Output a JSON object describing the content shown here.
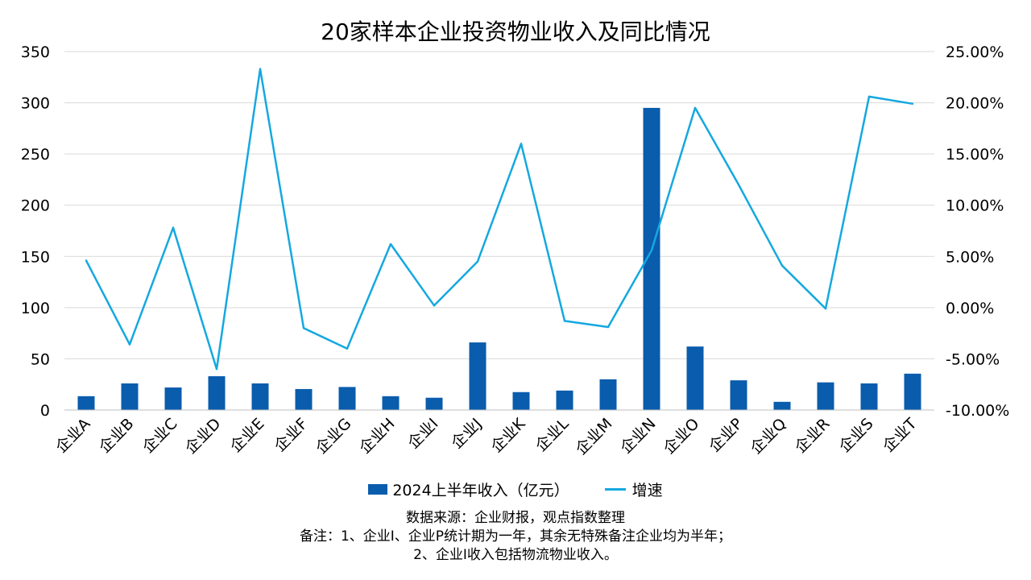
{
  "title": "20家样本企业投资物业收入及同比情况",
  "colors": {
    "bar": "#0a5cad",
    "line": "#15a8e0",
    "grid": "#d9d9d9"
  },
  "chart_data": {
    "type": "bar+line",
    "title": "20家样本企业投资物业收入及同比情况",
    "categories": [
      "企业A",
      "企业B",
      "企业C",
      "企业D",
      "企业E",
      "企业F",
      "企业G",
      "企业H",
      "企业I",
      "企业J",
      "企业K",
      "企业L",
      "企业M",
      "企业N",
      "企业O",
      "企业P",
      "企业Q",
      "企业R",
      "企业S",
      "企业T"
    ],
    "series": [
      {
        "name": "2024上半年收入（亿元）",
        "type": "bar",
        "axis": "left",
        "values": [
          13.5,
          26,
          22,
          33,
          26,
          20.5,
          22.5,
          13.5,
          12,
          66,
          17.5,
          19,
          30,
          295,
          62,
          29,
          8,
          27,
          26,
          35.5
        ]
      },
      {
        "name": "增速",
        "type": "line",
        "axis": "right",
        "values": [
          4.6,
          -3.6,
          7.8,
          -6,
          23.3,
          -2,
          -4,
          6.2,
          0.2,
          4.5,
          16,
          -1.3,
          -1.9,
          5.6,
          19.5,
          12,
          4.1,
          -0.1,
          20.6,
          19.9
        ]
      }
    ],
    "y_left": {
      "min": 0,
      "max": 350,
      "ticks": [
        "0",
        "50",
        "100",
        "150",
        "200",
        "250",
        "300",
        "350"
      ]
    },
    "y_right": {
      "min": -10,
      "max": 25,
      "ticks": [
        "-10.00%",
        "-5.00%",
        "0.00%",
        "5.00%",
        "10.00%",
        "15.00%",
        "20.00%",
        "25.00%"
      ]
    },
    "grid": true,
    "legend_position": "bottom"
  },
  "legend": {
    "bar_label": "2024上半年收入（亿元）",
    "line_label": "增速"
  },
  "notes": {
    "line1": "数据来源：企业财报，观点指数整理",
    "line2": "备注：1、企业I、企业P统计期为一年，其余无特殊备注企业均为半年；",
    "line3": "2、企业I收入包括物流物业收入。"
  }
}
